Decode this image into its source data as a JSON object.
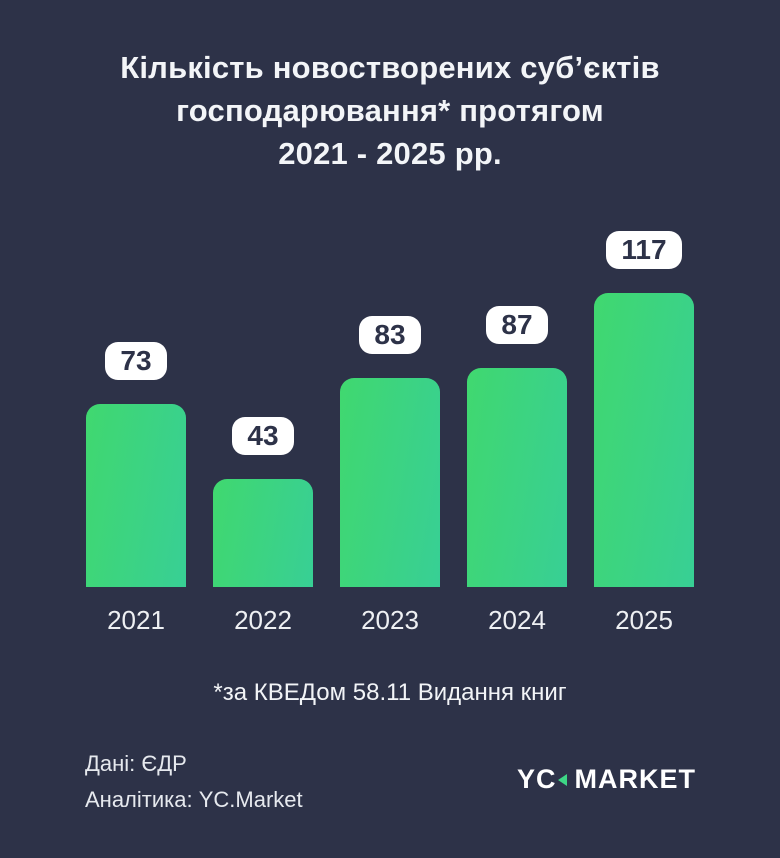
{
  "title": {
    "lines": [
      "Кількість новостворених суб’єктів",
      "господарювання* протягом",
      "2021 - 2025 рр."
    ]
  },
  "chart_data": {
    "type": "bar",
    "categories": [
      "2021",
      "2022",
      "2023",
      "2024",
      "2025"
    ],
    "values": [
      73,
      43,
      83,
      87,
      117
    ],
    "value_labels": [
      "73",
      "43",
      "83",
      "87",
      "117"
    ],
    "title": "Кількість новостворених суб’єктів господарювання* протягом 2021 - 2025 рр.",
    "xlabel": "",
    "ylabel": "",
    "ylim": [
      0,
      120
    ],
    "grid": false,
    "legend": "none",
    "bar_gradient": [
      "#40d86f",
      "#38cf95"
    ]
  },
  "footnote": "*за КВЕДом 58.11 Видання книг",
  "credits": {
    "source": "Дані: ЄДР",
    "analytics": "Аналітика: YC.Market"
  },
  "logo": {
    "part1": "YC",
    "part2": "MARKET",
    "triangle_icon": "left-pointing-triangle"
  },
  "colors": {
    "background": "#2d3248",
    "bar_gradient_start": "#40d86f",
    "bar_gradient_end": "#38cf95",
    "pill_background": "#ffffff",
    "pill_text": "#2d3248",
    "text": "#f2f4f7",
    "logo_accent": "#3dd685"
  }
}
